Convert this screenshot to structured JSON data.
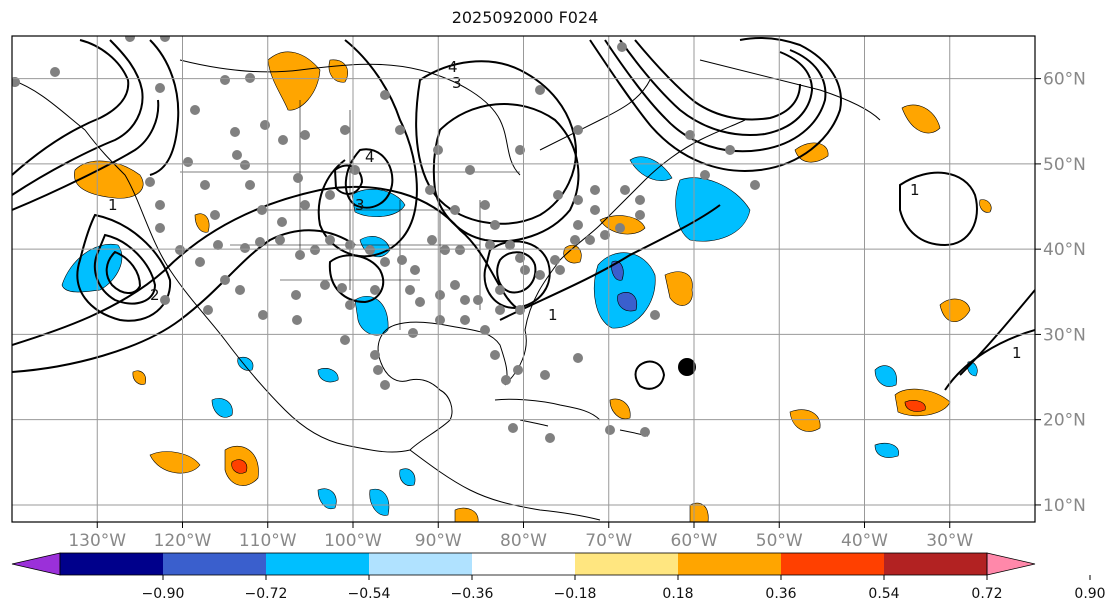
{
  "title": "2025092000 F024",
  "lon_labels": [
    "130°W",
    "120°W",
    "110°W",
    "100°W",
    "90°W",
    "80°W",
    "70°W",
    "60°W",
    "50°W",
    "40°W",
    "30°W"
  ],
  "lon_values": [
    -130,
    -120,
    -110,
    -100,
    -90,
    -80,
    -70,
    -60,
    -50,
    -40,
    -30
  ],
  "lat_labels": [
    "60°N",
    "50°N",
    "40°N",
    "30°N",
    "20°N",
    "10°N"
  ],
  "lat_values": [
    60,
    50,
    40,
    30,
    20,
    10
  ],
  "extent": {
    "lon_min": -140,
    "lon_max": -20,
    "lat_min": 8,
    "lat_max": 65
  },
  "colorbar": {
    "tick_labels": [
      "−0.90",
      "−0.72",
      "−0.54",
      "−0.36",
      "−0.18",
      "0.18",
      "0.36",
      "0.54",
      "0.72",
      "0.90"
    ],
    "colors": [
      "#9b30d9",
      "#00008b",
      "#3a5fcd",
      "#00bfff",
      "#b0e2ff",
      "#ffffff",
      "#ffe680",
      "#ffa500",
      "#ff4000",
      "#b22222",
      "#ff88aa"
    ]
  },
  "contour_labels": [
    "1",
    "2",
    "3",
    "4"
  ],
  "colors": {
    "positive": "#ffa500",
    "positive_strong": "#ff4000",
    "negative": "#00bfff",
    "negative_strong": "#3a5fcd",
    "station": "#808080",
    "marker": "#000000"
  }
}
